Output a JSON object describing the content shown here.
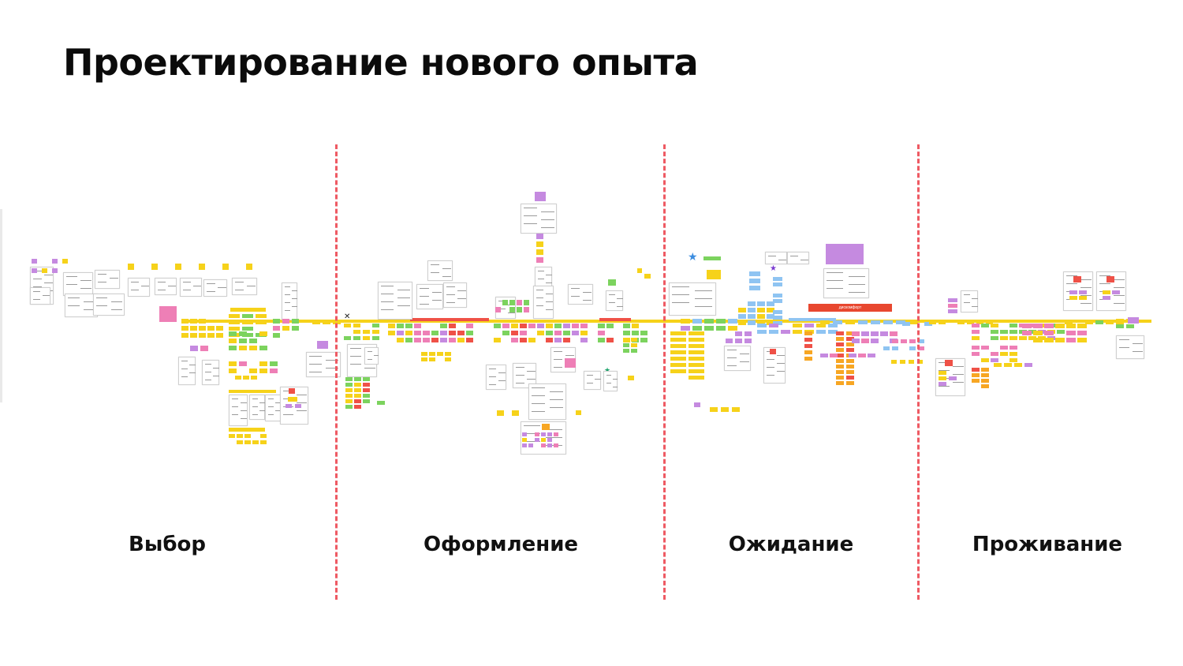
{
  "slide": {
    "title": "Проектирование нового опыта"
  },
  "phases": [
    {
      "label": "Выбор"
    },
    {
      "label": "Оформление"
    },
    {
      "label": "Ожидание"
    },
    {
      "label": "Проживание"
    }
  ],
  "board_labels": {
    "red_bar": "дискомфорт"
  },
  "colors": {
    "divider": "#ee5a63",
    "sticky_yellow": "#f6d21a",
    "sticky_pink": "#ee7fb6",
    "sticky_green": "#7cd35e",
    "sticky_purple": "#c58ae0",
    "sticky_blue": "#8fc4f2",
    "sticky_red": "#ef5147",
    "sticky_orange": "#f7a623"
  }
}
